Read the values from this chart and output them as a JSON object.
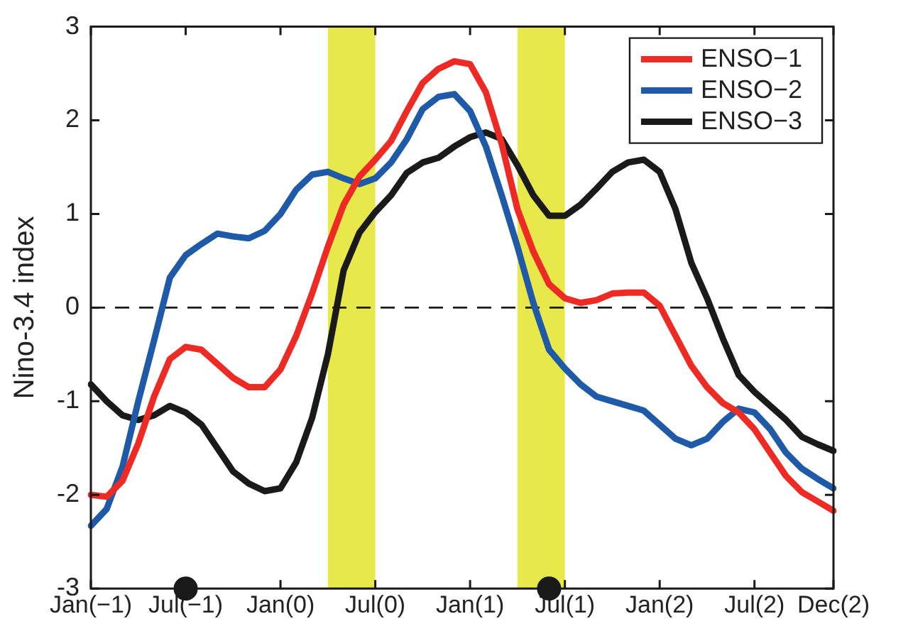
{
  "chart_data": {
    "type": "line",
    "ylabel": "Nino-3.4 index",
    "categories": [
      "Jan(−1)",
      null,
      null,
      null,
      null,
      null,
      "Jul(−1)",
      null,
      null,
      null,
      null,
      null,
      "Jan(0)",
      null,
      null,
      null,
      null,
      null,
      "Jul(0)",
      null,
      null,
      null,
      null,
      null,
      "Jan(1)",
      null,
      null,
      null,
      null,
      null,
      "Jul(1)",
      null,
      null,
      null,
      null,
      null,
      "Jan(2)",
      null,
      null,
      null,
      null,
      null,
      "Jul(2)",
      null,
      null,
      null,
      null,
      "Dec(2)"
    ],
    "ylim": [
      -3,
      3
    ],
    "yticks": [
      -3,
      -2,
      -1,
      0,
      1,
      2,
      3
    ],
    "series": [
      {
        "name": "ENSO−1",
        "color": "#ee2a24",
        "values": [
          -2.0,
          -2.02,
          -1.85,
          -1.45,
          -0.95,
          -0.55,
          -0.42,
          -0.45,
          -0.6,
          -0.75,
          -0.85,
          -0.85,
          -0.66,
          -0.3,
          0.15,
          0.65,
          1.1,
          1.4,
          1.58,
          1.78,
          2.1,
          2.4,
          2.55,
          2.63,
          2.6,
          2.3,
          1.75,
          1.05,
          0.6,
          0.25,
          0.1,
          0.05,
          0.08,
          0.15,
          0.16,
          0.16,
          0.02,
          -0.3,
          -0.62,
          -0.85,
          -1.02,
          -1.12,
          -1.3,
          -1.55,
          -1.8,
          -1.97,
          -2.07,
          -2.17
        ]
      },
      {
        "name": "ENSO−2",
        "color": "#1f5aa8",
        "values": [
          -2.33,
          -2.15,
          -1.7,
          -1.0,
          -0.35,
          0.32,
          0.56,
          0.68,
          0.79,
          0.76,
          0.74,
          0.82,
          1.0,
          1.26,
          1.42,
          1.45,
          1.38,
          1.32,
          1.38,
          1.55,
          1.8,
          2.12,
          2.25,
          2.28,
          2.1,
          1.72,
          1.2,
          0.65,
          0.05,
          -0.45,
          -0.65,
          -0.82,
          -0.95,
          -1.0,
          -1.05,
          -1.1,
          -1.25,
          -1.4,
          -1.47,
          -1.4,
          -1.22,
          -1.08,
          -1.12,
          -1.3,
          -1.55,
          -1.72,
          -1.83,
          -1.93
        ]
      },
      {
        "name": "ENSO−3",
        "color": "#1a1a1a",
        "values": [
          -0.82,
          -1.0,
          -1.15,
          -1.2,
          -1.15,
          -1.05,
          -1.12,
          -1.25,
          -1.5,
          -1.75,
          -1.88,
          -1.96,
          -1.93,
          -1.65,
          -1.18,
          -0.5,
          0.4,
          0.8,
          1.02,
          1.2,
          1.44,
          1.55,
          1.6,
          1.72,
          1.82,
          1.87,
          1.8,
          1.52,
          1.2,
          0.98,
          0.98,
          1.1,
          1.27,
          1.45,
          1.55,
          1.58,
          1.45,
          1.05,
          0.48,
          0.1,
          -0.33,
          -0.72,
          -0.9,
          -1.05,
          -1.2,
          -1.38,
          -1.46,
          -1.53
        ]
      },
      {
        "type": "scatter",
        "color": "#1a1a1a",
        "marker": "circle",
        "values": [
          null,
          null,
          null,
          null,
          null,
          null,
          -3,
          null,
          null,
          null,
          null,
          null,
          null,
          null,
          null,
          null,
          null,
          null,
          null,
          null,
          null,
          null,
          null,
          null,
          null,
          null,
          null,
          null,
          null,
          -3,
          null,
          null,
          null,
          null,
          null,
          null,
          null,
          null,
          null,
          null,
          null,
          null,
          null,
          null,
          null,
          null,
          null,
          null
        ]
      }
    ],
    "ref_lines": [
      {
        "axis": "y",
        "value": 0,
        "color": "#1a1a1a",
        "line_style": "dashed"
      }
    ],
    "legend": "top right",
    "grid": false,
    "marker": "none",
    "line_style": "solid"
  }
}
